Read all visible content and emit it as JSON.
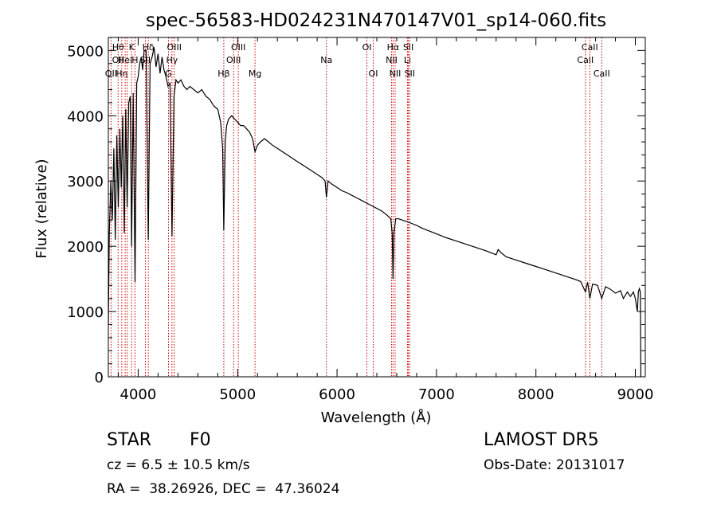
{
  "chart_data": {
    "type": "line",
    "title": "spec-56583-HD024231N470147V01_sp14-060.fits",
    "xlabel": "Wavelength (Å)",
    "ylabel": "Flux (relative)",
    "xlim": [
      3700,
      9100
    ],
    "ylim": [
      0,
      5200
    ],
    "x_ticks": [
      4000,
      5000,
      6000,
      7000,
      8000,
      9000
    ],
    "y_ticks": [
      0,
      1000,
      2000,
      3000,
      4000,
      5000
    ],
    "grid": false,
    "series": [
      {
        "color": "#000000",
        "points": [
          [
            3700,
            800
          ],
          [
            3710,
            2200
          ],
          [
            3725,
            3000
          ],
          [
            3740,
            2400
          ],
          [
            3755,
            3500
          ],
          [
            3770,
            2100
          ],
          [
            3785,
            3700
          ],
          [
            3800,
            2600
          ],
          [
            3815,
            3800
          ],
          [
            3830,
            2900
          ],
          [
            3845,
            4000
          ],
          [
            3860,
            2200
          ],
          [
            3875,
            4100
          ],
          [
            3889,
            2600
          ],
          [
            3905,
            4200
          ],
          [
            3920,
            4300
          ],
          [
            3934,
            2000
          ],
          [
            3950,
            4350
          ],
          [
            3968,
            1450
          ],
          [
            3985,
            4500
          ],
          [
            4000,
            4600
          ],
          [
            4015,
            4800
          ],
          [
            4030,
            4900
          ],
          [
            4045,
            4700
          ],
          [
            4060,
            5000
          ],
          [
            4080,
            5000
          ],
          [
            4101,
            2100
          ],
          [
            4120,
            4800
          ],
          [
            4140,
            4900
          ],
          [
            4160,
            5050
          ],
          [
            4180,
            4750
          ],
          [
            4200,
            4950
          ],
          [
            4220,
            4650
          ],
          [
            4240,
            4900
          ],
          [
            4260,
            4700
          ],
          [
            4280,
            4600
          ],
          [
            4300,
            4450
          ],
          [
            4320,
            4500
          ],
          [
            4340,
            2150
          ],
          [
            4360,
            4300
          ],
          [
            4380,
            4550
          ],
          [
            4400,
            4500
          ],
          [
            4430,
            4550
          ],
          [
            4460,
            4450
          ],
          [
            4490,
            4400
          ],
          [
            4520,
            4450
          ],
          [
            4560,
            4400
          ],
          [
            4600,
            4350
          ],
          [
            4640,
            4400
          ],
          [
            4680,
            4300
          ],
          [
            4720,
            4250
          ],
          [
            4760,
            4150
          ],
          [
            4800,
            4100
          ],
          [
            4830,
            3900
          ],
          [
            4850,
            3500
          ],
          [
            4861,
            2250
          ],
          [
            4875,
            3600
          ],
          [
            4890,
            3850
          ],
          [
            4910,
            3950
          ],
          [
            4940,
            4000
          ],
          [
            4970,
            3950
          ],
          [
            5000,
            3900
          ],
          [
            5030,
            3850
          ],
          [
            5060,
            3850
          ],
          [
            5090,
            3800
          ],
          [
            5120,
            3750
          ],
          [
            5150,
            3650
          ],
          [
            5175,
            3450
          ],
          [
            5200,
            3550
          ],
          [
            5230,
            3600
          ],
          [
            5270,
            3650
          ],
          [
            5310,
            3600
          ],
          [
            5350,
            3550
          ],
          [
            5400,
            3500
          ],
          [
            5450,
            3450
          ],
          [
            5500,
            3400
          ],
          [
            5550,
            3350
          ],
          [
            5600,
            3300
          ],
          [
            5650,
            3250
          ],
          [
            5700,
            3200
          ],
          [
            5750,
            3150
          ],
          [
            5800,
            3100
          ],
          [
            5850,
            3050
          ],
          [
            5880,
            3000
          ],
          [
            5893,
            2750
          ],
          [
            5910,
            3000
          ],
          [
            5950,
            2950
          ],
          [
            6000,
            2900
          ],
          [
            6050,
            2850
          ],
          [
            6100,
            2820
          ],
          [
            6150,
            2780
          ],
          [
            6200,
            2740
          ],
          [
            6250,
            2700
          ],
          [
            6300,
            2660
          ],
          [
            6350,
            2620
          ],
          [
            6400,
            2580
          ],
          [
            6450,
            2540
          ],
          [
            6500,
            2480
          ],
          [
            6540,
            2420
          ],
          [
            6555,
            2200
          ],
          [
            6563,
            1500
          ],
          [
            6572,
            2200
          ],
          [
            6590,
            2420
          ],
          [
            6620,
            2420
          ],
          [
            6660,
            2400
          ],
          [
            6700,
            2380
          ],
          [
            6750,
            2350
          ],
          [
            6800,
            2320
          ],
          [
            6850,
            2280
          ],
          [
            6900,
            2250
          ],
          [
            6950,
            2220
          ],
          [
            7000,
            2190
          ],
          [
            7100,
            2130
          ],
          [
            7200,
            2080
          ],
          [
            7300,
            2030
          ],
          [
            7400,
            1980
          ],
          [
            7500,
            1930
          ],
          [
            7600,
            1870
          ],
          [
            7620,
            1950
          ],
          [
            7650,
            1900
          ],
          [
            7700,
            1840
          ],
          [
            7800,
            1790
          ],
          [
            7900,
            1740
          ],
          [
            8000,
            1690
          ],
          [
            8100,
            1640
          ],
          [
            8200,
            1590
          ],
          [
            8300,
            1540
          ],
          [
            8400,
            1490
          ],
          [
            8450,
            1460
          ],
          [
            8498,
            1300
          ],
          [
            8520,
            1450
          ],
          [
            8542,
            1200
          ],
          [
            8570,
            1420
          ],
          [
            8600,
            1410
          ],
          [
            8620,
            1400
          ],
          [
            8662,
            1200
          ],
          [
            8700,
            1380
          ],
          [
            8750,
            1340
          ],
          [
            8800,
            1280
          ],
          [
            8850,
            1320
          ],
          [
            8880,
            1200
          ],
          [
            8920,
            1300
          ],
          [
            8950,
            1230
          ],
          [
            8980,
            1300
          ],
          [
            9000,
            1200
          ],
          [
            9020,
            1000
          ],
          [
            9030,
            1300
          ],
          [
            9040,
            1350
          ],
          [
            9050,
            1300
          ],
          [
            9055,
            0
          ]
        ]
      }
    ],
    "lines": [
      {
        "x": 3727,
        "labels": [
          {
            "text": "OII",
            "row": 3
          }
        ]
      },
      {
        "x": 3798,
        "labels": [
          {
            "text": "Hθ",
            "row": 1
          },
          {
            "text": "OII",
            "row": 2
          }
        ]
      },
      {
        "x": 3835,
        "labels": [
          {
            "text": "Hη",
            "row": 3
          }
        ]
      },
      {
        "x": 3869,
        "labels": [
          {
            "text": "HeI",
            "row": 2
          }
        ]
      },
      {
        "x": 3889,
        "labels": []
      },
      {
        "x": 3934,
        "labels": [
          {
            "text": "K",
            "row": 1
          }
        ]
      },
      {
        "x": 3968,
        "labels": [
          {
            "text": "H",
            "row": 2
          }
        ]
      },
      {
        "x": 4072,
        "labels": [
          {
            "text": "SII",
            "row": 2
          }
        ]
      },
      {
        "x": 4102,
        "labels": [
          {
            "text": "Hδ",
            "row": 1
          }
        ]
      },
      {
        "x": 4305,
        "labels": [
          {
            "text": "G",
            "row": 3
          }
        ]
      },
      {
        "x": 4340,
        "labels": [
          {
            "text": "Hγ",
            "row": 2
          }
        ]
      },
      {
        "x": 4363,
        "labels": [
          {
            "text": "OIII",
            "row": 1
          }
        ]
      },
      {
        "x": 4861,
        "labels": [
          {
            "text": "Hβ",
            "row": 3
          }
        ]
      },
      {
        "x": 4959,
        "labels": [
          {
            "text": "OIII",
            "row": 2
          }
        ]
      },
      {
        "x": 5007,
        "labels": [
          {
            "text": "OIII",
            "row": 1
          }
        ]
      },
      {
        "x": 5175,
        "labels": [
          {
            "text": "Mg",
            "row": 3
          }
        ]
      },
      {
        "x": 5893,
        "labels": [
          {
            "text": "Na",
            "row": 2
          }
        ]
      },
      {
        "x": 6300,
        "labels": [
          {
            "text": "OI",
            "row": 1
          }
        ]
      },
      {
        "x": 6364,
        "labels": [
          {
            "text": "OI",
            "row": 3
          }
        ]
      },
      {
        "x": 6548,
        "labels": [
          {
            "text": "NII",
            "row": 2
          }
        ]
      },
      {
        "x": 6563,
        "labels": [
          {
            "text": "Hα",
            "row": 1
          }
        ]
      },
      {
        "x": 6584,
        "labels": [
          {
            "text": "NII",
            "row": 3
          }
        ]
      },
      {
        "x": 6708,
        "labels": [
          {
            "text": "Li",
            "row": 2
          }
        ]
      },
      {
        "x": 6717,
        "labels": [
          {
            "text": "SII",
            "row": 1
          }
        ]
      },
      {
        "x": 6731,
        "labels": [
          {
            "text": "SII",
            "row": 3
          }
        ]
      },
      {
        "x": 8498,
        "labels": [
          {
            "text": "CaII",
            "row": 2
          }
        ]
      },
      {
        "x": 8542,
        "labels": [
          {
            "text": "CaII",
            "row": 1
          }
        ]
      },
      {
        "x": 8662,
        "labels": [
          {
            "text": "CaII",
            "row": 3
          }
        ]
      }
    ],
    "line_color": "#cc0000"
  },
  "info": {
    "class_label": "STAR",
    "subclass": "F0",
    "survey": "LAMOST DR5",
    "cz": "cz = 6.5 ± 10.5 km/s",
    "obs_date": "Obs-Date: 20131017",
    "coords": "RA =  38.26926, DEC =  47.36024"
  }
}
